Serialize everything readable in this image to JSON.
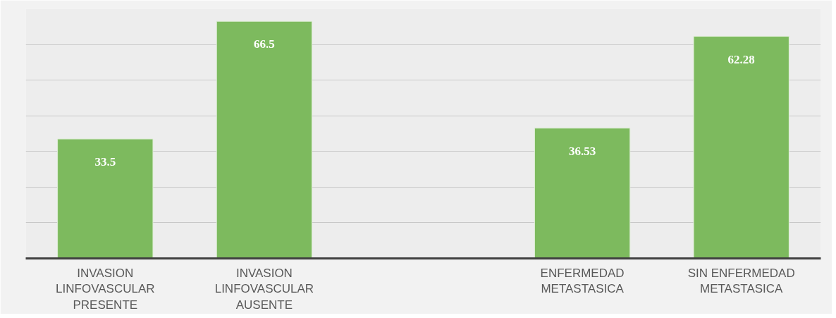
{
  "chart_data": {
    "type": "bar",
    "categories": [
      "INVASION LINFOVASCULAR PRESENTE",
      "INVASION LINFOVASCULAR AUSENTE",
      null,
      "ENFERMEDAD METASTASICA",
      "SIN ENFERMEDAD METASTASICA"
    ],
    "values": [
      33.5,
      66.5,
      null,
      36.53,
      62.28
    ],
    "color": "#7dba5e",
    "ylim": [
      0,
      70
    ],
    "yticks": [
      {
        "value": 0,
        "label": null
      },
      {
        "value": 10,
        "label": null
      },
      {
        "value": 20,
        "label": null
      },
      {
        "value": 30,
        "label": null
      },
      {
        "value": 40,
        "label": null
      },
      {
        "value": 50,
        "label": null
      },
      {
        "value": 60,
        "label": null
      },
      {
        "value": 70,
        "label": null
      }
    ],
    "grid": "y",
    "tick_labels": "x",
    "data_labels": true
  }
}
